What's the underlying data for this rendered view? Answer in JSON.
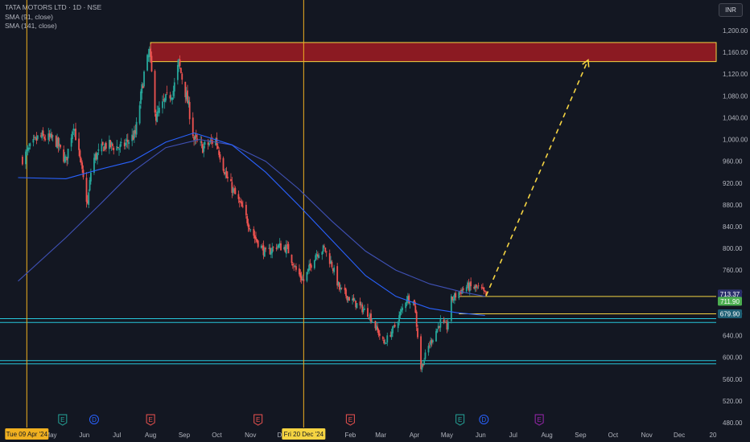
{
  "header": {
    "symbol_line": "TATA MOTORS LTD · 1D · NSE",
    "sma_fast": "SMA (91, close)",
    "sma_slow": "SMA (141, close)",
    "currency_button": "INR"
  },
  "colors": {
    "background": "#131722",
    "up": "#26a69a",
    "down": "#ef5350",
    "sma_fast": "#2962ff",
    "sma_slow": "#3f51b5",
    "supply_zone": "#8b1a22",
    "annotation": "#f5d442",
    "support_line": "#26c6da",
    "cursor_line": "#f0b020"
  },
  "chart_data": {
    "type": "candlestick",
    "ylim": [
      475,
      1215
    ],
    "grid": false,
    "y_ticks": [
      "1,200.00",
      "1,160.00",
      "1,120.00",
      "1,080.00",
      "1,040.00",
      "1,000.00",
      "960.00",
      "920.00",
      "880.00",
      "840.00",
      "800.00",
      "760.00",
      "720.00",
      "680.00",
      "640.00",
      "600.00",
      "560.00",
      "520.00",
      "480.00"
    ],
    "x_ticks": [
      {
        "label": "May",
        "date": "2024-05-01"
      },
      {
        "label": "Jun",
        "date": "2024-06-01"
      },
      {
        "label": "Jul",
        "date": "2024-07-01"
      },
      {
        "label": "Aug",
        "date": "2024-08-01"
      },
      {
        "label": "Sep",
        "date": "2024-09-01"
      },
      {
        "label": "Oct",
        "date": "2024-10-01"
      },
      {
        "label": "Nov",
        "date": "2024-11-01"
      },
      {
        "label": "Dec",
        "date": "2024-12-01"
      },
      {
        "label": "Feb",
        "date": "2025-02-01"
      },
      {
        "label": "Mar",
        "date": "2025-03-01"
      },
      {
        "label": "Apr",
        "date": "2025-04-01"
      },
      {
        "label": "May",
        "date": "2025-05-01"
      },
      {
        "label": "Jun",
        "date": "2025-06-01"
      },
      {
        "label": "Jul",
        "date": "2025-07-01"
      },
      {
        "label": "Aug",
        "date": "2025-08-01"
      },
      {
        "label": "Sep",
        "date": "2025-09-01"
      },
      {
        "label": "Oct",
        "date": "2025-10-01"
      },
      {
        "label": "Nov",
        "date": "2025-11-01"
      },
      {
        "label": "Dec",
        "date": "2025-12-01"
      },
      {
        "label": "20",
        "date": "2026-01-01"
      }
    ],
    "price_path": [
      [
        "2024-04-05",
        965
      ],
      [
        "2024-04-20",
        1005
      ],
      [
        "2024-05-05",
        1000
      ],
      [
        "2024-05-15",
        960
      ],
      [
        "2024-05-22",
        1030
      ],
      [
        "2024-06-04",
        880
      ],
      [
        "2024-06-08",
        960
      ],
      [
        "2024-06-20",
        990
      ],
      [
        "2024-07-05",
        985
      ],
      [
        "2024-07-18",
        1010
      ],
      [
        "2024-07-26",
        1120
      ],
      [
        "2024-07-31",
        1160
      ],
      [
        "2024-08-06",
        1040
      ],
      [
        "2024-08-14",
        1070
      ],
      [
        "2024-08-22",
        1090
      ],
      [
        "2024-08-27",
        1140
      ],
      [
        "2024-09-05",
        1060
      ],
      [
        "2024-09-10",
        1000
      ],
      [
        "2024-09-18",
        985
      ],
      [
        "2024-09-30",
        1000
      ],
      [
        "2024-10-10",
        930
      ],
      [
        "2024-10-25",
        870
      ],
      [
        "2024-11-05",
        820
      ],
      [
        "2024-11-15",
        790
      ],
      [
        "2024-11-25",
        805
      ],
      [
        "2024-12-05",
        800
      ],
      [
        "2024-12-13",
        760
      ],
      [
        "2024-12-20",
        740
      ],
      [
        "2024-12-31",
        790
      ],
      [
        "2025-01-08",
        800
      ],
      [
        "2025-01-15",
        770
      ],
      [
        "2025-01-22",
        725
      ],
      [
        "2025-02-05",
        700
      ],
      [
        "2025-02-18",
        680
      ],
      [
        "2025-03-04",
        625
      ],
      [
        "2025-03-15",
        660
      ],
      [
        "2025-03-25",
        710
      ],
      [
        "2025-04-01",
        700
      ],
      [
        "2025-04-07",
        580
      ],
      [
        "2025-04-14",
        620
      ],
      [
        "2025-04-25",
        665
      ],
      [
        "2025-05-01",
        655
      ],
      [
        "2025-05-05",
        705
      ],
      [
        "2025-05-12",
        720
      ],
      [
        "2025-05-20",
        730
      ],
      [
        "2025-06-01",
        725
      ],
      [
        "2025-06-06",
        713
      ]
    ],
    "sma_91": [
      [
        "2024-04-01",
        930
      ],
      [
        "2024-05-15",
        928
      ],
      [
        "2024-06-15",
        945
      ],
      [
        "2024-07-15",
        960
      ],
      [
        "2024-08-15",
        995
      ],
      [
        "2024-09-10",
        1012
      ],
      [
        "2024-10-15",
        990
      ],
      [
        "2024-11-15",
        940
      ],
      [
        "2024-12-15",
        880
      ],
      [
        "2025-01-15",
        815
      ],
      [
        "2025-02-15",
        750
      ],
      [
        "2025-03-15",
        712
      ],
      [
        "2025-04-15",
        690
      ],
      [
        "2025-05-10",
        682
      ],
      [
        "2025-06-05",
        677
      ]
    ],
    "sma_141": [
      [
        "2024-04-01",
        740
      ],
      [
        "2024-05-15",
        820
      ],
      [
        "2024-06-15",
        880
      ],
      [
        "2024-07-15",
        940
      ],
      [
        "2024-08-15",
        985
      ],
      [
        "2024-09-15",
        1000
      ],
      [
        "2024-10-15",
        990
      ],
      [
        "2024-11-15",
        960
      ],
      [
        "2024-12-15",
        910
      ],
      [
        "2025-01-15",
        850
      ],
      [
        "2025-02-15",
        795
      ],
      [
        "2025-03-15",
        760
      ],
      [
        "2025-04-15",
        735
      ],
      [
        "2025-05-15",
        720
      ],
      [
        "2025-06-05",
        712
      ]
    ],
    "supply_zone": {
      "from": "2024-08-01",
      "price_low": 1143,
      "price_high": 1178
    },
    "horizontal_lines": [
      {
        "price": 711.9,
        "color": "#f5d442"
      },
      {
        "price": 679.9,
        "color": "#f5d442"
      },
      {
        "price": 671,
        "color": "#26c6da"
      },
      {
        "price": 664,
        "color": "#26c6da"
      },
      {
        "price": 594,
        "color": "#26c6da"
      },
      {
        "price": 588,
        "color": "#26c6da"
      }
    ],
    "projection": {
      "from": {
        "date": "2025-06-06",
        "price": 713
      },
      "to": {
        "date": "2025-09-08",
        "price": 1146
      }
    },
    "cursor_lines": [
      "2024-04-09",
      "2024-12-20"
    ],
    "price_labels": [
      {
        "text": "713.37",
        "price": 713.37,
        "bg": "#2a2e6b",
        "fg": "#ffffff"
      },
      {
        "text": "711.90",
        "price": 711.9,
        "bg": "#4caf50",
        "fg": "#ffffff"
      },
      {
        "text": "679.90",
        "price": 679.9,
        "bg": "#1e5f74",
        "fg": "#ffffff"
      }
    ],
    "date_labels": [
      {
        "text": "Tue 09 Apr '24",
        "date": "2024-04-09"
      },
      {
        "text": "Fri 20 Dec '24",
        "date": "2024-12-20"
      }
    ],
    "event_markers": [
      {
        "letter": "E",
        "date": "2024-05-12",
        "color": "#26a69a",
        "shape": "pentagon"
      },
      {
        "letter": "D",
        "date": "2024-06-10",
        "color": "#2962ff",
        "shape": "circle"
      },
      {
        "letter": "E",
        "date": "2024-08-01",
        "color": "#ef5350",
        "shape": "pentagon"
      },
      {
        "letter": "E",
        "date": "2024-11-08",
        "color": "#ef5350",
        "shape": "pentagon"
      },
      {
        "letter": "E",
        "date": "2025-02-01",
        "color": "#ef5350",
        "shape": "pentagon"
      },
      {
        "letter": "E",
        "date": "2025-05-13",
        "color": "#26a69a",
        "shape": "pentagon"
      },
      {
        "letter": "D",
        "date": "2025-06-04",
        "color": "#2962ff",
        "shape": "circle"
      },
      {
        "letter": "E",
        "date": "2025-07-25",
        "color": "#9c27b0",
        "shape": "pentagon"
      }
    ]
  }
}
